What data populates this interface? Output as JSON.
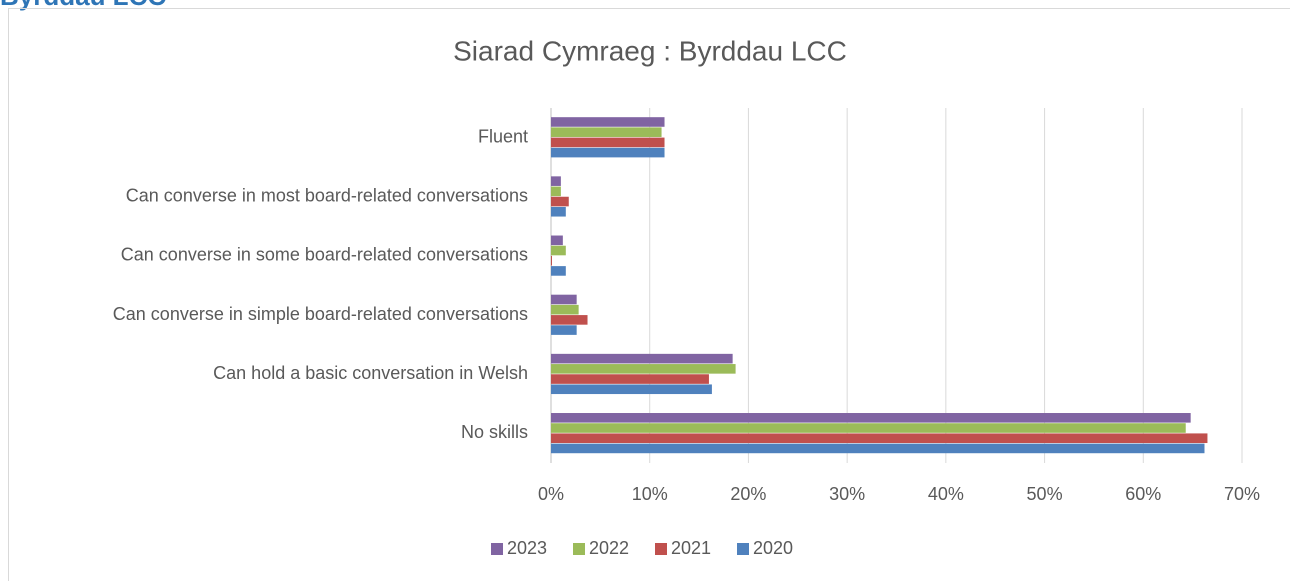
{
  "header": {
    "title": "Byrddau LCC"
  },
  "chart_data": {
    "type": "bar",
    "orientation": "horizontal",
    "title": "Siarad Cymraeg : Byrddau LCC",
    "categories": [
      "Fluent",
      "Can converse in most board-related conversations",
      "Can converse in some board-related conversations",
      "Can converse in simple board-related conversations",
      "Can hold a basic conversation in Welsh",
      "No skills"
    ],
    "series": [
      {
        "name": "2023",
        "color": "#8064a2",
        "values": [
          11.5,
          1.0,
          1.2,
          2.6,
          18.4,
          64.8
        ]
      },
      {
        "name": "2022",
        "color": "#9bbb59",
        "values": [
          11.2,
          1.0,
          1.5,
          2.8,
          18.7,
          64.3
        ]
      },
      {
        "name": "2021",
        "color": "#c0504d",
        "values": [
          11.5,
          1.8,
          0.1,
          3.7,
          16.0,
          66.5
        ]
      },
      {
        "name": "2020",
        "color": "#4f81bd",
        "values": [
          11.5,
          1.5,
          1.5,
          2.6,
          16.3,
          66.2
        ]
      }
    ],
    "xlim": [
      0,
      70
    ],
    "xticks": [
      {
        "value": 0,
        "label": "0%"
      },
      {
        "value": 10,
        "label": "10%"
      },
      {
        "value": 20,
        "label": "20%"
      },
      {
        "value": 30,
        "label": "30%"
      },
      {
        "value": 40,
        "label": "40%"
      },
      {
        "value": 50,
        "label": "50%"
      },
      {
        "value": 60,
        "label": "60%"
      },
      {
        "value": 70,
        "label": "70%"
      }
    ],
    "grid": true,
    "legend": "bottom"
  }
}
